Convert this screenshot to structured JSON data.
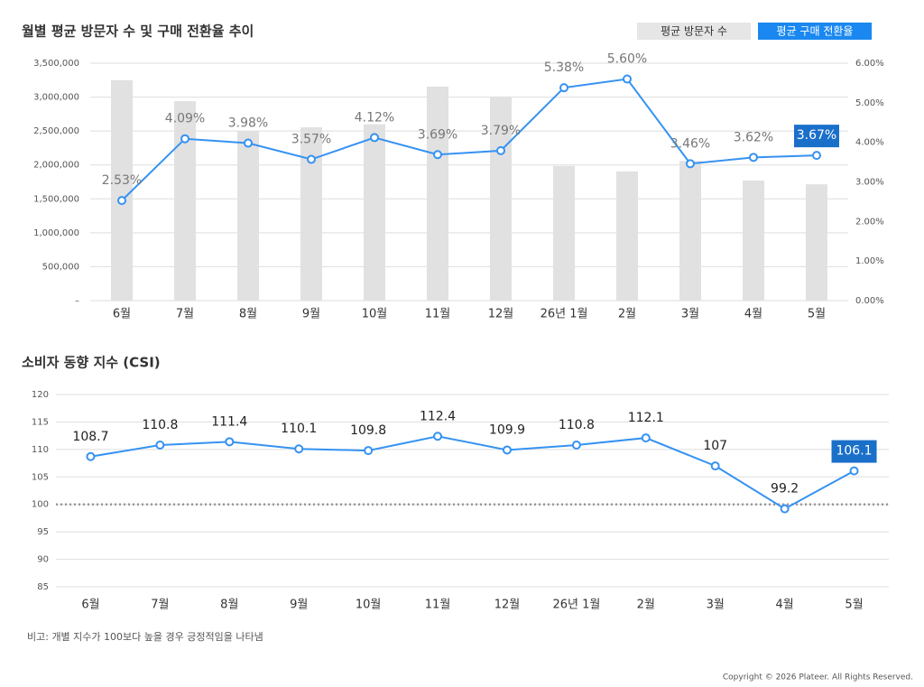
{
  "chart_data": [
    {
      "type": "combo",
      "title": "월별 평균 방문자 수 및 구매 전환율 추이",
      "legend": "top-right",
      "categories": [
        "6월",
        "7월",
        "8월",
        "9월",
        "10월",
        "11월",
        "12월",
        "26년 1월",
        "2월",
        "3월",
        "4월",
        "5월"
      ],
      "series": [
        {
          "name": "평균 방문자 수",
          "type": "bar",
          "color": "#e1e1e1",
          "values": [
            3250000,
            2940000,
            2500000,
            2555000,
            2600000,
            3155000,
            3010000,
            1985000,
            1905000,
            2060000,
            1770000,
            1715000
          ]
        },
        {
          "name": "평균 구매 전환율",
          "type": "line",
          "axis": "y2",
          "color": "#3592f2",
          "values": [
            2.53,
            4.09,
            3.98,
            3.57,
            4.12,
            3.69,
            3.79,
            5.38,
            5.6,
            3.46,
            3.62,
            3.67
          ],
          "value_labels": [
            "2.53%",
            "4.09%",
            "3.98%",
            "3.57%",
            "4.12%",
            "3.69%",
            "3.79%",
            "5.38%",
            "5.60%",
            "3.46%",
            "3.62%",
            "3.67%"
          ]
        }
      ],
      "ylim": [
        0,
        3500000
      ],
      "yticks": [
        {
          "value": 0,
          "label": "–"
        },
        {
          "value": 500000,
          "label": "500,000"
        },
        {
          "value": 1000000,
          "label": "1,000,000"
        },
        {
          "value": 1500000,
          "label": "1,500,000"
        },
        {
          "value": 2000000,
          "label": "2,000,000"
        },
        {
          "value": 2500000,
          "label": "2,500,000"
        },
        {
          "value": 3000000,
          "label": "3,000,000"
        },
        {
          "value": 3500000,
          "label": "3,500,000"
        }
      ],
      "y2lim": [
        0,
        6
      ],
      "y2ticks": [
        {
          "value": 0,
          "label": "0.00%"
        },
        {
          "value": 1,
          "label": "1.00%"
        },
        {
          "value": 2,
          "label": "2.00%"
        },
        {
          "value": 3,
          "label": "3.00%"
        },
        {
          "value": 4,
          "label": "4.00%"
        },
        {
          "value": 5,
          "label": "5.00%"
        },
        {
          "value": 6,
          "label": "6.00%"
        }
      ],
      "grid": true
    },
    {
      "type": "line",
      "title": "소비자 동향 지수 (CSI)",
      "categories": [
        "6월",
        "7월",
        "8월",
        "9월",
        "10월",
        "11월",
        "12월",
        "26년 1월",
        "2월",
        "3월",
        "4월",
        "5월"
      ],
      "series": [
        {
          "name": "CSI",
          "color": "#3592f2",
          "values": [
            108.7,
            110.8,
            111.4,
            110.1,
            109.8,
            112.4,
            109.9,
            110.8,
            112.1,
            107,
            99.2,
            106.1
          ]
        }
      ],
      "ylim": [
        85,
        120
      ],
      "yticks": [
        85,
        90,
        95,
        100,
        105,
        110,
        115,
        120
      ],
      "grid": true,
      "reference_line": 100,
      "note": "비고: 개별 지수가 100보다 높을 경우 긍정적임을 나타냄"
    }
  ],
  "copyright": "Copyright © 2026 Plateer. All Rights Reserved."
}
